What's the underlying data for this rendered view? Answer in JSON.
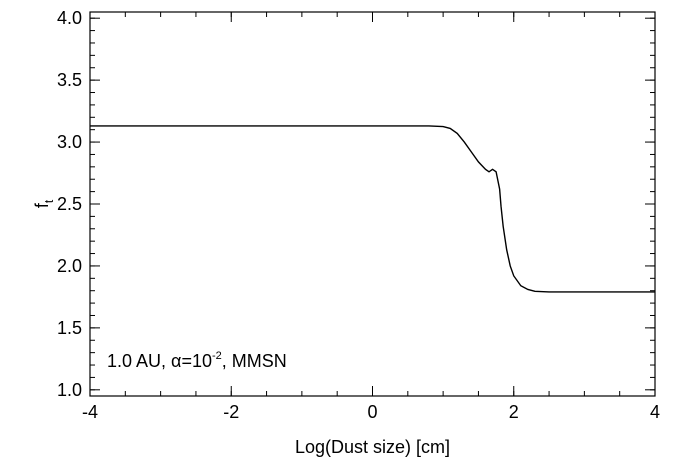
{
  "chart_data": {
    "type": "line",
    "xlabel": "Log(Dust size) [cm]",
    "ylabel_main": "f",
    "ylabel_sub": "t",
    "xlim": [
      -4,
      4
    ],
    "ylim": [
      0.95,
      4.05
    ],
    "x_ticks": [
      -4,
      -2,
      0,
      2,
      4
    ],
    "x_tick_labels": [
      "-4",
      "-2",
      "0",
      "2",
      "4"
    ],
    "y_ticks": [
      1.0,
      1.5,
      2.0,
      2.5,
      3.0,
      3.5,
      4.0
    ],
    "y_tick_labels": [
      "1.0",
      "1.5",
      "2.0",
      "2.5",
      "3.0",
      "3.5",
      "4.0"
    ],
    "x_minor_step": 0.5,
    "y_minor_step": 0.1,
    "grid": false,
    "annotation": {
      "prefix": "1.0 AU, ",
      "alpha_symbol": "α",
      "alpha_eq": "=10",
      "alpha_exp": "-2",
      "suffix": ", MMSN"
    },
    "series": [
      {
        "color": "#000000",
        "x": [
          -4.0,
          -2.0,
          0.0,
          0.8,
          1.0,
          1.1,
          1.2,
          1.3,
          1.4,
          1.5,
          1.6,
          1.65,
          1.7,
          1.75,
          1.8,
          1.82,
          1.85,
          1.9,
          1.95,
          2.0,
          2.1,
          2.2,
          2.3,
          2.5,
          2.8,
          3.0,
          3.5,
          4.0
        ],
        "y": [
          3.13,
          3.13,
          3.13,
          3.13,
          3.125,
          3.11,
          3.07,
          3.0,
          2.92,
          2.84,
          2.78,
          2.76,
          2.78,
          2.76,
          2.62,
          2.48,
          2.32,
          2.13,
          2.0,
          1.92,
          1.84,
          1.81,
          1.795,
          1.79,
          1.79,
          1.79,
          1.79,
          1.79
        ]
      }
    ]
  }
}
